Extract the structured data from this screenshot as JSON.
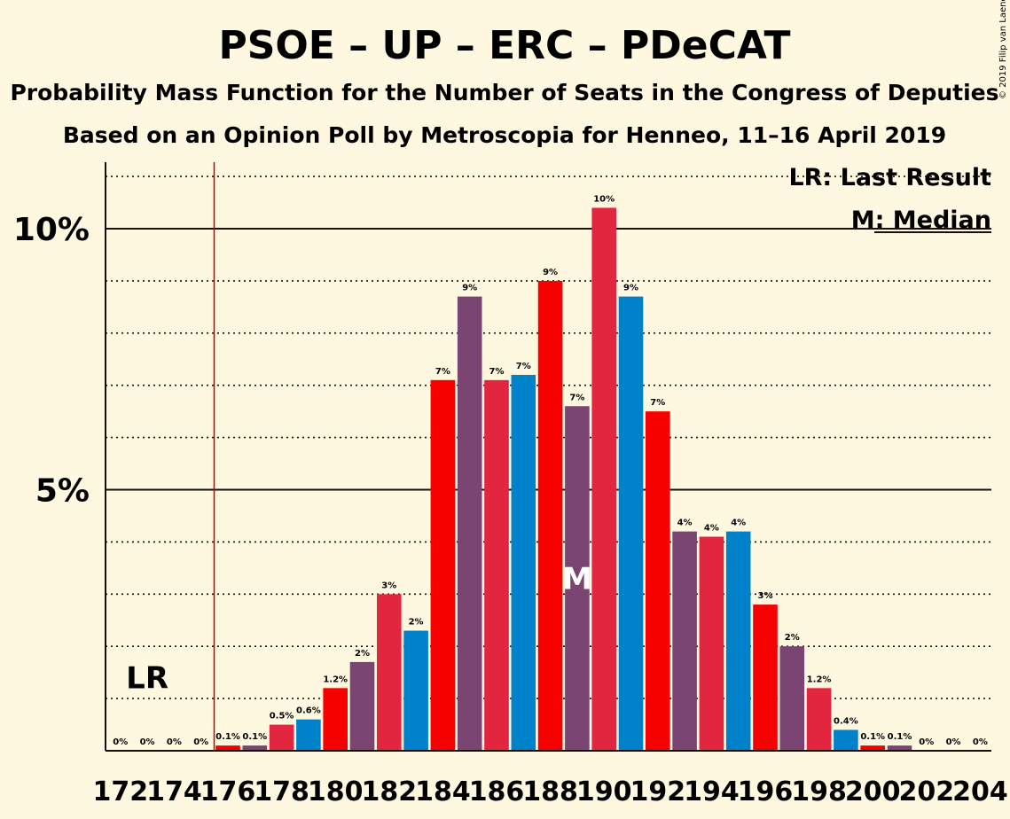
{
  "chart_data": {
    "type": "bar",
    "title": "PSOE – UP – ERC – PDeCAT",
    "subtitle": "Probability Mass Function for the Number of Seats in the Congress of Deputies",
    "subtitle2": "Based on an Opinion Poll by Metroscopia for Henneo, 11–16 April 2019",
    "copyright": "© 2019 Filip van Laenen",
    "legend": {
      "last_result": "LR: Last Result",
      "median": "M: Median"
    },
    "last_result_marker": "LR",
    "median_marker": "M",
    "last_result_seat": 175,
    "median_seat": 189,
    "ylim": [
      0,
      11.3
    ],
    "yticks": [
      {
        "value": 5,
        "label": "5%"
      },
      {
        "value": 10,
        "label": "10%"
      }
    ],
    "x": [
      172,
      173,
      174,
      175,
      176,
      177,
      178,
      179,
      180,
      181,
      182,
      183,
      184,
      185,
      186,
      187,
      188,
      189,
      190,
      191,
      192,
      193,
      194,
      195,
      196,
      197,
      198,
      199,
      200,
      201,
      202,
      203,
      204
    ],
    "x_tick_labels": [
      "172",
      "174",
      "176",
      "178",
      "180",
      "182",
      "184",
      "186",
      "188",
      "190",
      "192",
      "194",
      "196",
      "198",
      "200",
      "202",
      "204"
    ],
    "values": [
      0,
      0,
      0,
      0,
      0.1,
      0.1,
      0.5,
      0.6,
      1.2,
      1.7,
      3,
      2.3,
      7.1,
      8.7,
      7.1,
      7.2,
      9,
      6.6,
      10.4,
      8.7,
      6.5,
      4.2,
      4.1,
      4.2,
      2.8,
      2,
      1.2,
      0.4,
      0.1,
      0.1,
      0,
      0,
      0
    ],
    "data_labels": [
      "0%",
      "0%",
      "0%",
      "0%",
      "0.1%",
      "0.1%",
      "0.5%",
      "0.6%",
      "1.2%",
      "2%",
      "3%",
      "2%",
      "7%",
      "9%",
      "7%",
      "7%",
      "9%",
      "7%",
      "10%",
      "9%",
      "7%",
      "4%",
      "4%",
      "4%",
      "3%",
      "2%",
      "1.2%",
      "0.4%",
      "0.1%",
      "0.1%",
      "0%",
      "0%",
      "0%"
    ],
    "colors": {
      "red": "#F70000",
      "crimson": "#E3263F",
      "purple": "#7A4572",
      "blue": "#0082CA",
      "background": "#FFF8E1",
      "lr_line": "#C00000"
    },
    "bar_colors": [
      "red",
      "purple",
      "crimson",
      "blue",
      "red",
      "purple",
      "crimson",
      "blue",
      "red",
      "purple",
      "crimson",
      "blue",
      "red",
      "purple",
      "crimson",
      "blue",
      "red",
      "purple",
      "crimson",
      "blue",
      "red",
      "purple",
      "crimson",
      "blue",
      "red",
      "purple",
      "crimson",
      "blue",
      "red",
      "purple",
      "crimson",
      "blue",
      "red"
    ]
  }
}
